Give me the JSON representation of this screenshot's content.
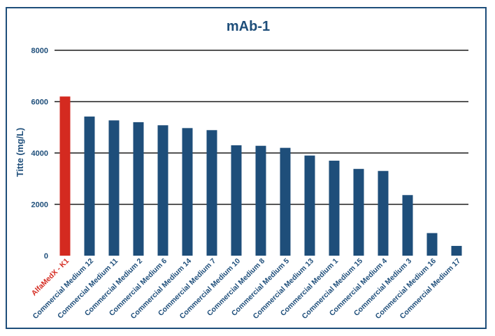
{
  "chart_data": {
    "type": "bar",
    "title": "mAb-1",
    "xlabel": "",
    "ylabel": "Titte (mg/L)",
    "ylim": [
      0,
      8000
    ],
    "yticks": [
      0,
      2000,
      4000,
      6000,
      8000
    ],
    "grid": true,
    "categories": [
      "AlfaMedX - K1",
      "Commercial Medium 12",
      "Commercial Medium 11",
      "Commercial Medium 2",
      "Commercial Medium 6",
      "Commercial Medium 14",
      "Commercial Medium 7",
      "Commercial Medium 10",
      "Commercial Medium 8",
      "Commercial Medium 5",
      "Commercial Medium 13",
      "Commercial Medium 1",
      "Commercial Medium 15",
      "Commercial Medium 4",
      "Commercial Medium 3",
      "Commercial Medium 16",
      "Commercial Medium 17"
    ],
    "values": [
      6200,
      5420,
      5270,
      5200,
      5080,
      4970,
      4890,
      4300,
      4280,
      4200,
      3900,
      3700,
      3380,
      3300,
      2360,
      880,
      380
    ],
    "highlight_index": 0,
    "colors": {
      "bar": "#1e4e7a",
      "highlight": "#d42a20",
      "grid": "#1a1a1a",
      "text": "#1e4e7a"
    }
  }
}
